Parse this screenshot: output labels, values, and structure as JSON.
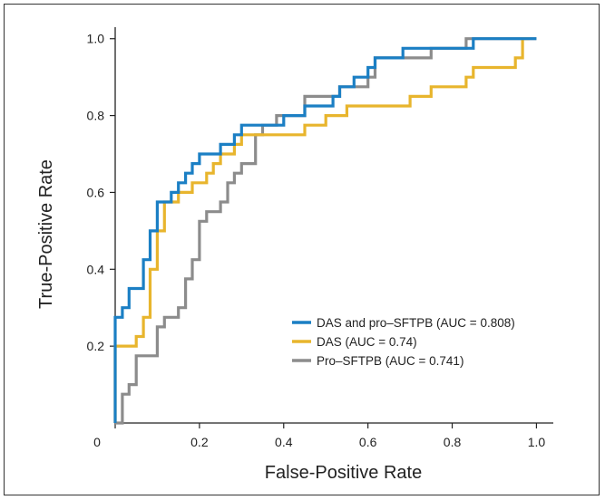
{
  "chart_data": {
    "type": "line",
    "title": "",
    "xlabel": "False-Positive Rate",
    "ylabel": "True-Positive Rate",
    "xlim": [
      0,
      1.04
    ],
    "ylim": [
      0,
      1.03
    ],
    "x_ticks": [
      {
        "value": 0,
        "label": "0"
      },
      {
        "value": 0.2,
        "label": "0.2"
      },
      {
        "value": 0.4,
        "label": "0.4"
      },
      {
        "value": 0.6,
        "label": "0.6"
      },
      {
        "value": 0.8,
        "label": "0.8"
      },
      {
        "value": 1.0,
        "label": "1.0"
      }
    ],
    "y_ticks": [
      {
        "value": 0.2,
        "label": "0.2"
      },
      {
        "value": 0.4,
        "label": "0.4"
      },
      {
        "value": 0.6,
        "label": "0.6"
      },
      {
        "value": 0.8,
        "label": "0.8"
      },
      {
        "value": 1.0,
        "label": "1.0"
      }
    ],
    "grid": false,
    "legend_position": "lower-right",
    "series": [
      {
        "name": "DAS and pro–SFTPB (AUC = 0.808)",
        "color": "#1b7fc4",
        "points": [
          [
            0.0,
            0.0
          ],
          [
            0.0,
            0.275
          ],
          [
            0.017,
            0.275
          ],
          [
            0.017,
            0.3
          ],
          [
            0.033,
            0.3
          ],
          [
            0.033,
            0.35
          ],
          [
            0.067,
            0.35
          ],
          [
            0.067,
            0.425
          ],
          [
            0.083,
            0.425
          ],
          [
            0.083,
            0.5
          ],
          [
            0.1,
            0.5
          ],
          [
            0.1,
            0.575
          ],
          [
            0.133,
            0.575
          ],
          [
            0.133,
            0.6
          ],
          [
            0.15,
            0.6
          ],
          [
            0.15,
            0.625
          ],
          [
            0.167,
            0.625
          ],
          [
            0.167,
            0.65
          ],
          [
            0.183,
            0.65
          ],
          [
            0.183,
            0.675
          ],
          [
            0.2,
            0.675
          ],
          [
            0.2,
            0.7
          ],
          [
            0.25,
            0.7
          ],
          [
            0.25,
            0.725
          ],
          [
            0.283,
            0.725
          ],
          [
            0.283,
            0.75
          ],
          [
            0.3,
            0.75
          ],
          [
            0.3,
            0.775
          ],
          [
            0.333,
            0.775
          ],
          [
            0.333,
            0.775
          ],
          [
            0.4,
            0.775
          ],
          [
            0.4,
            0.8
          ],
          [
            0.45,
            0.8
          ],
          [
            0.45,
            0.825
          ],
          [
            0.517,
            0.825
          ],
          [
            0.517,
            0.85
          ],
          [
            0.533,
            0.85
          ],
          [
            0.533,
            0.875
          ],
          [
            0.567,
            0.875
          ],
          [
            0.567,
            0.9
          ],
          [
            0.6,
            0.9
          ],
          [
            0.6,
            0.925
          ],
          [
            0.617,
            0.925
          ],
          [
            0.617,
            0.95
          ],
          [
            0.683,
            0.95
          ],
          [
            0.683,
            0.975
          ],
          [
            0.85,
            0.975
          ],
          [
            0.85,
            1.0
          ],
          [
            0.867,
            1.0
          ],
          [
            1.0,
            1.0
          ]
        ]
      },
      {
        "name": "DAS (AUC = 0.74)",
        "color": "#e8b52d",
        "points": [
          [
            0.0,
            0.0
          ],
          [
            0.0,
            0.2
          ],
          [
            0.033,
            0.2
          ],
          [
            0.033,
            0.2
          ],
          [
            0.05,
            0.2
          ],
          [
            0.05,
            0.225
          ],
          [
            0.067,
            0.225
          ],
          [
            0.067,
            0.275
          ],
          [
            0.083,
            0.275
          ],
          [
            0.083,
            0.4
          ],
          [
            0.1,
            0.4
          ],
          [
            0.1,
            0.5
          ],
          [
            0.117,
            0.5
          ],
          [
            0.117,
            0.575
          ],
          [
            0.15,
            0.575
          ],
          [
            0.15,
            0.6
          ],
          [
            0.183,
            0.6
          ],
          [
            0.183,
            0.625
          ],
          [
            0.217,
            0.625
          ],
          [
            0.217,
            0.65
          ],
          [
            0.233,
            0.65
          ],
          [
            0.233,
            0.675
          ],
          [
            0.25,
            0.675
          ],
          [
            0.25,
            0.7
          ],
          [
            0.283,
            0.7
          ],
          [
            0.283,
            0.725
          ],
          [
            0.3,
            0.725
          ],
          [
            0.3,
            0.75
          ],
          [
            0.45,
            0.75
          ],
          [
            0.45,
            0.775
          ],
          [
            0.5,
            0.775
          ],
          [
            0.5,
            0.8
          ],
          [
            0.55,
            0.8
          ],
          [
            0.55,
            0.825
          ],
          [
            0.7,
            0.825
          ],
          [
            0.7,
            0.85
          ],
          [
            0.75,
            0.85
          ],
          [
            0.75,
            0.875
          ],
          [
            0.833,
            0.875
          ],
          [
            0.833,
            0.9
          ],
          [
            0.85,
            0.9
          ],
          [
            0.85,
            0.925
          ],
          [
            0.95,
            0.925
          ],
          [
            0.95,
            0.95
          ],
          [
            0.967,
            0.95
          ],
          [
            0.967,
            1.0
          ],
          [
            0.983,
            1.0
          ]
        ]
      },
      {
        "name": "Pro–SFTPB (AUC = 0.741)",
        "color": "#8c8c8c",
        "points": [
          [
            0.0,
            0.0
          ],
          [
            0.017,
            0.0
          ],
          [
            0.017,
            0.075
          ],
          [
            0.033,
            0.075
          ],
          [
            0.033,
            0.1
          ],
          [
            0.05,
            0.1
          ],
          [
            0.05,
            0.175
          ],
          [
            0.083,
            0.175
          ],
          [
            0.083,
            0.175
          ],
          [
            0.1,
            0.175
          ],
          [
            0.1,
            0.25
          ],
          [
            0.117,
            0.25
          ],
          [
            0.117,
            0.275
          ],
          [
            0.15,
            0.275
          ],
          [
            0.15,
            0.3
          ],
          [
            0.167,
            0.3
          ],
          [
            0.167,
            0.375
          ],
          [
            0.183,
            0.375
          ],
          [
            0.183,
            0.425
          ],
          [
            0.2,
            0.425
          ],
          [
            0.2,
            0.525
          ],
          [
            0.217,
            0.525
          ],
          [
            0.217,
            0.55
          ],
          [
            0.25,
            0.55
          ],
          [
            0.25,
            0.575
          ],
          [
            0.267,
            0.575
          ],
          [
            0.267,
            0.625
          ],
          [
            0.283,
            0.625
          ],
          [
            0.283,
            0.65
          ],
          [
            0.3,
            0.65
          ],
          [
            0.3,
            0.675
          ],
          [
            0.333,
            0.675
          ],
          [
            0.333,
            0.75
          ],
          [
            0.35,
            0.75
          ],
          [
            0.35,
            0.775
          ],
          [
            0.383,
            0.775
          ],
          [
            0.383,
            0.8
          ],
          [
            0.45,
            0.8
          ],
          [
            0.45,
            0.85
          ],
          [
            0.533,
            0.85
          ],
          [
            0.533,
            0.875
          ],
          [
            0.6,
            0.875
          ],
          [
            0.6,
            0.9
          ],
          [
            0.617,
            0.9
          ],
          [
            0.617,
            0.95
          ],
          [
            0.75,
            0.95
          ],
          [
            0.75,
            0.975
          ],
          [
            0.833,
            0.975
          ],
          [
            0.833,
            1.0
          ],
          [
            1.0,
            1.0
          ]
        ]
      }
    ]
  }
}
